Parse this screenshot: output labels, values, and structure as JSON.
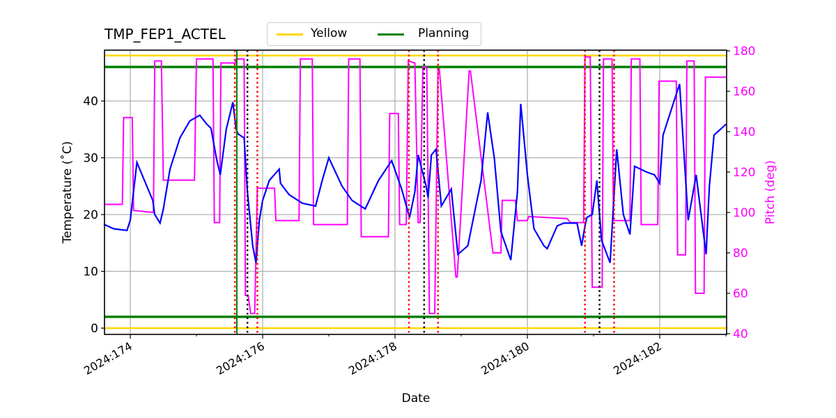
{
  "chart_data": {
    "type": "line",
    "title": "TMP_FEP1_ACTEL",
    "xlabel": "Date",
    "ylabel": "Temperature ($^\\circ$C)",
    "ylabel_display": "Temperature (˚C)",
    "y2label": "Pitch (deg)",
    "xlim": [
      173.6,
      183.0
    ],
    "ylim": [
      -1,
      49
    ],
    "y2lim": [
      40,
      180
    ],
    "grid": true,
    "legend_position": "top-center",
    "xticks": [
      174,
      176,
      178,
      180,
      182
    ],
    "xtick_labels": [
      "2024:174",
      "2024:176",
      "2024:178",
      "2024:180",
      "2024:182"
    ],
    "minor_xticks": [
      175,
      177,
      179,
      181,
      183
    ],
    "yticks": [
      0,
      10,
      20,
      30,
      40
    ],
    "y2ticks": [
      40,
      60,
      80,
      100,
      120,
      140,
      160,
      180
    ],
    "legend": [
      {
        "label": "Yellow",
        "color": "#ffd700"
      },
      {
        "label": "Planning",
        "color": "#008000"
      }
    ],
    "limits": {
      "yellow": [
        0,
        48
      ],
      "planning": [
        2,
        46
      ]
    },
    "vertical_lines": {
      "green_solid": [
        175.61
      ],
      "red_dotted": [
        175.58,
        175.92,
        178.21,
        178.65,
        180.87,
        181.31
      ],
      "black_dotted": [
        175.77,
        178.44,
        181.09
      ]
    },
    "series": [
      {
        "name": "TMP_FEP1_ACTEL",
        "axis": "left",
        "color": "#0000ff",
        "x": [
          173.6,
          173.75,
          173.95,
          174.0,
          174.1,
          174.25,
          174.34,
          174.37,
          174.45,
          174.5,
          174.6,
          174.75,
          174.9,
          175.05,
          175.15,
          175.22,
          175.3,
          175.36,
          175.45,
          175.55,
          175.6,
          175.63,
          175.72,
          175.77,
          175.85,
          175.9,
          175.95,
          176.0,
          176.1,
          176.25,
          176.27,
          176.4,
          176.6,
          176.8,
          176.9,
          177.0,
          177.2,
          177.35,
          177.55,
          177.75,
          177.95,
          178.1,
          178.22,
          178.3,
          178.35,
          178.47,
          178.5,
          178.55,
          178.62,
          178.7,
          178.85,
          178.95,
          179.1,
          179.3,
          179.4,
          179.5,
          179.6,
          179.75,
          179.85,
          179.9,
          180.0,
          180.1,
          180.2,
          180.25,
          180.3,
          180.45,
          180.55,
          180.65,
          180.75,
          180.82,
          180.87,
          180.9,
          180.98,
          181.05,
          181.12,
          181.25,
          181.35,
          181.45,
          181.55,
          181.62,
          181.8,
          181.92,
          182.0,
          182.05,
          182.3,
          182.43,
          182.55,
          182.7,
          182.75,
          182.82,
          183.0
        ],
        "y": [
          18.3,
          17.5,
          17.2,
          19.0,
          29.2,
          25.0,
          22.5,
          20.0,
          18.5,
          21.0,
          28.0,
          33.5,
          36.5,
          37.5,
          36.0,
          35.2,
          30.0,
          27.0,
          35.0,
          39.8,
          35.0,
          34.2,
          33.5,
          24.0,
          14.5,
          11.5,
          19.0,
          22.5,
          26.0,
          28.0,
          25.5,
          23.5,
          22.0,
          21.5,
          26.0,
          30.0,
          25.0,
          22.5,
          21.0,
          26.0,
          29.5,
          24.5,
          19.5,
          24.0,
          30.5,
          25.0,
          23.0,
          30.5,
          31.5,
          21.5,
          24.5,
          13.0,
          14.5,
          26.0,
          38.0,
          30.0,
          17.0,
          12.0,
          24.0,
          39.5,
          27.0,
          17.5,
          15.5,
          14.5,
          14.0,
          18.0,
          18.5,
          18.5,
          18.5,
          14.5,
          18.0,
          19.5,
          20.0,
          26.0,
          15.5,
          11.5,
          31.5,
          20.0,
          16.5,
          28.5,
          27.5,
          27.0,
          25.5,
          34.0,
          43.0,
          19.0,
          27.0,
          13.0,
          25.0,
          34.0,
          35.9
        ]
      },
      {
        "name": "Pitch",
        "axis": "right",
        "color": "#ff00ff",
        "x": [
          173.6,
          173.88,
          173.9,
          174.03,
          174.05,
          174.35,
          174.37,
          174.47,
          174.5,
          174.97,
          175.0,
          175.25,
          175.27,
          175.35,
          175.37,
          175.59,
          175.6,
          175.72,
          175.74,
          175.78,
          175.82,
          175.88,
          175.92,
          175.94,
          176.18,
          176.2,
          176.55,
          176.57,
          176.75,
          176.77,
          177.28,
          177.3,
          177.47,
          177.49,
          177.9,
          177.92,
          178.05,
          178.07,
          178.17,
          178.2,
          178.3,
          178.35,
          178.38,
          178.42,
          178.48,
          178.52,
          178.6,
          178.65,
          178.67,
          178.92,
          178.94,
          179.12,
          179.14,
          179.48,
          179.5,
          179.6,
          179.62,
          179.82,
          179.85,
          180.0,
          180.02,
          180.6,
          180.65,
          180.85,
          180.87,
          180.95,
          180.98,
          181.13,
          181.15,
          181.28,
          181.3,
          181.55,
          181.57,
          181.7,
          181.72,
          181.97,
          181.99,
          182.25,
          182.27,
          182.39,
          182.41,
          182.52,
          182.54,
          182.67,
          182.69,
          183.0
        ],
        "y": [
          104,
          104,
          147,
          147,
          101,
          100,
          175,
          175,
          116,
          116,
          176,
          176,
          95,
          95,
          174,
          174,
          176,
          176,
          59,
          59,
          50,
          50,
          112,
          112,
          112,
          96,
          96,
          176,
          176,
          94,
          94,
          176,
          176,
          88,
          88,
          149,
          149,
          94,
          94,
          175,
          174,
          95,
          95,
          172,
          172,
          50,
          50,
          171,
          171,
          68,
          68,
          170,
          170,
          80,
          80,
          80,
          106,
          106,
          96,
          96,
          98,
          97,
          95,
          95,
          177,
          177,
          63,
          63,
          176,
          176,
          96,
          96,
          176,
          176,
          94,
          94,
          165,
          165,
          79,
          79,
          175,
          175,
          60,
          60,
          167,
          167
        ]
      }
    ]
  }
}
